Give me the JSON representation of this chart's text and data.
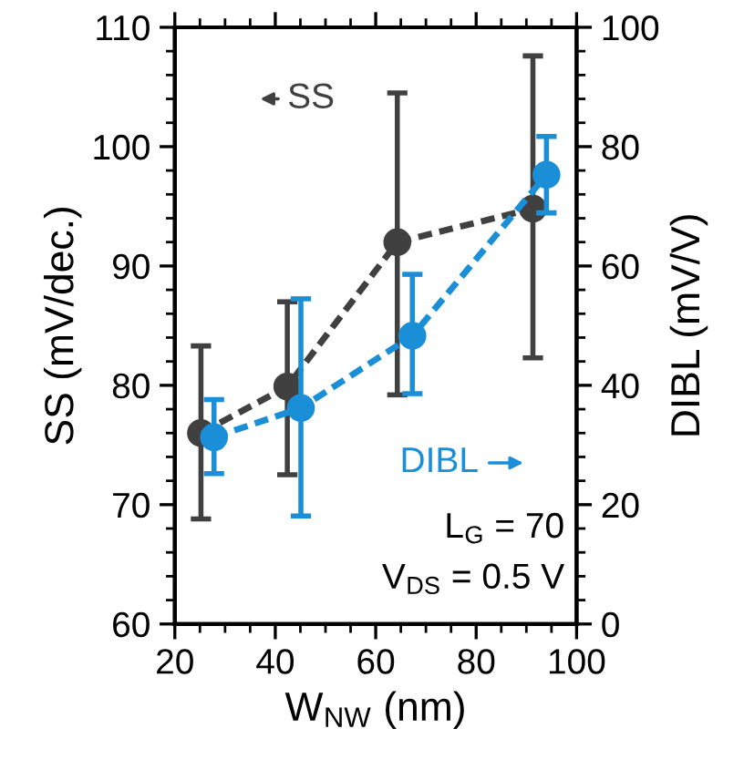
{
  "chart_data": {
    "type": "line",
    "xlabel": "W$_{NW}$ (nm)",
    "ylabel": "SS (mV/dec.)",
    "y2label": "DIBL (mV/V)",
    "xlim": [
      20,
      100
    ],
    "xticks": [
      20,
      40,
      60,
      80,
      100
    ],
    "ylim": [
      60,
      110
    ],
    "yticks": [
      60,
      70,
      80,
      90,
      100,
      110
    ],
    "y2lim": [
      0,
      100
    ],
    "y2ticks": [
      0,
      20,
      40,
      60,
      80,
      100
    ],
    "marker": "circle",
    "line_style": "dashed",
    "grid": false,
    "legend": "top left",
    "series": [
      {
        "name": "SS",
        "color": "#404040",
        "x": [
          25.2,
          42.4,
          64.3,
          91.3
        ],
        "values": [
          76.0,
          79.9,
          92.0,
          94.8
        ],
        "errors": [
          [
            68.8,
            83.3
          ],
          [
            72.5,
            87.0
          ],
          [
            79.2,
            104.5
          ],
          [
            82.3,
            107.6
          ]
        ]
      },
      {
        "name": "DIBL",
        "color": "#1a8fd8",
        "axis": "y2",
        "x": [
          27.8,
          45.1,
          67.3,
          94.0
        ],
        "values": [
          31.3,
          36.2,
          48.3,
          75.3
        ],
        "errors": [
          [
            25.2,
            37.6
          ],
          [
            18.1,
            54.5
          ],
          [
            38.6,
            58.6
          ],
          [
            68.9,
            81.7
          ]
        ]
      }
    ],
    "annotations": [
      "L$_{G}$ = 70",
      "V$_{DS}$ = 0.5 V"
    ]
  }
}
